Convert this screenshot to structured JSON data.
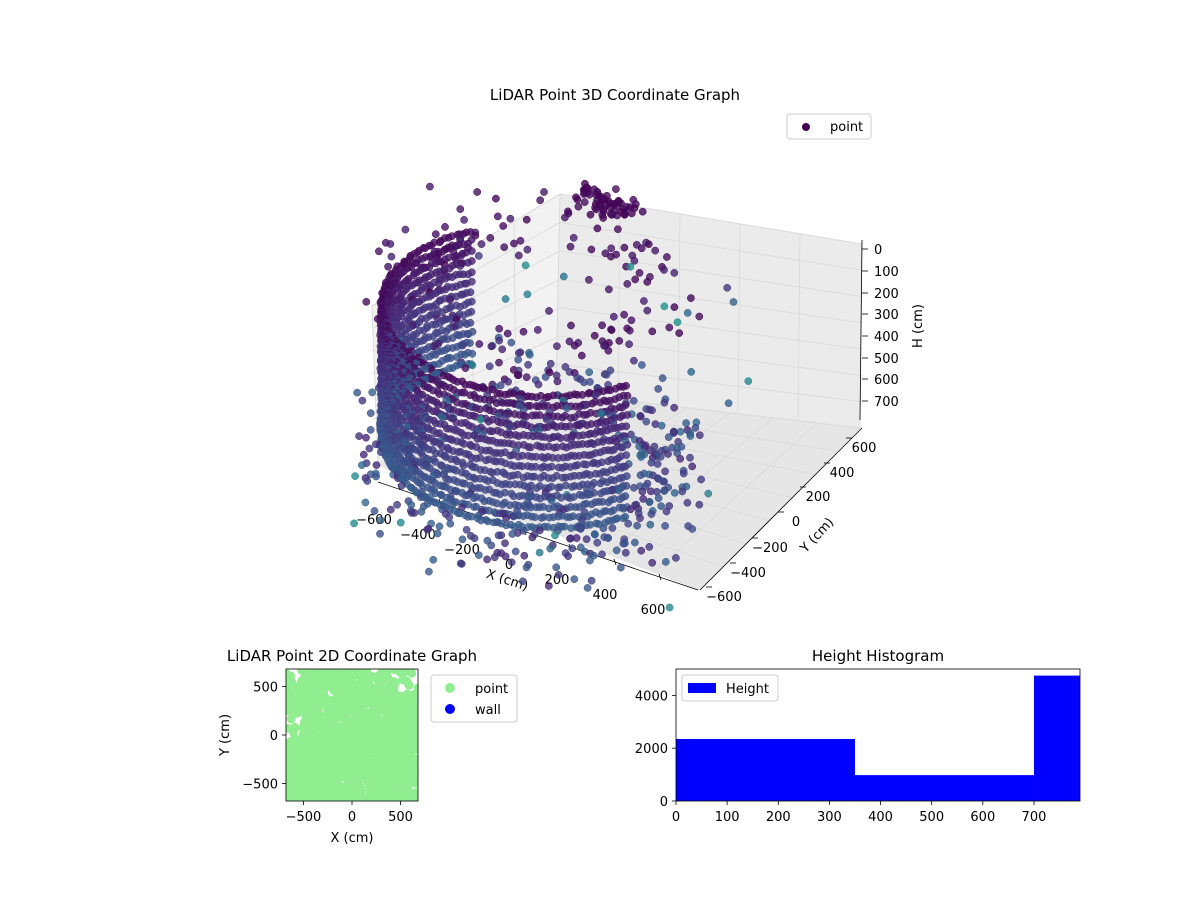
{
  "figure": {
    "background": "#ffffff"
  },
  "chart_data": [
    {
      "id": "chart3d",
      "type": "scatter",
      "title": "LiDAR Point 3D Coordinate Graph",
      "xlabel": "X (cm)",
      "ylabel": "Y (cm)",
      "zlabel": "H (cm)",
      "x_ticks": [
        "−600",
        "−400",
        "−200",
        "0",
        "200",
        "400",
        "600"
      ],
      "y_ticks": [
        "−600",
        "−400",
        "−200",
        "0",
        "200",
        "400",
        "600"
      ],
      "z_ticks": [
        "0",
        "100",
        "200",
        "300",
        "400",
        "500",
        "600",
        "700"
      ],
      "xlim": [
        -650,
        650
      ],
      "ylim": [
        -650,
        650
      ],
      "zlim": [
        0,
        780
      ],
      "z_inverted": true,
      "colormap": "viridis",
      "legend": {
        "label": "point",
        "placement": "top-right",
        "marker_color": "#440154"
      },
      "grid": true
    },
    {
      "id": "chart2d",
      "type": "scatter",
      "title": "LiDAR Point 2D Coordinate Graph",
      "xlabel": "X (cm)",
      "ylabel": "Y (cm)",
      "x_ticks": [
        -500,
        0,
        500
      ],
      "y_ticks": [
        -500,
        0,
        500
      ],
      "xlim": [
        -680,
        680
      ],
      "ylim": [
        -680,
        680
      ],
      "series": [
        {
          "name": "point",
          "color": "#90ee90"
        },
        {
          "name": "wall",
          "color": "#0000ff"
        }
      ],
      "legend": {
        "placement": "outside-right"
      }
    },
    {
      "id": "hist",
      "type": "bar",
      "title": "Height Histogram",
      "bins": [
        {
          "start": 0,
          "end": 350,
          "count": 2350
        },
        {
          "start": 350,
          "end": 700,
          "count": 980
        },
        {
          "start": 700,
          "end": 790,
          "count": 4750
        }
      ],
      "x_ticks": [
        0,
        100,
        200,
        300,
        400,
        500,
        600,
        700
      ],
      "y_ticks": [
        0,
        2000,
        4000
      ],
      "xlim": [
        0,
        790
      ],
      "ylim": [
        0,
        5000
      ],
      "bar_color": "#0000ff",
      "legend": {
        "label": "Height",
        "placement": "top-left"
      }
    }
  ]
}
